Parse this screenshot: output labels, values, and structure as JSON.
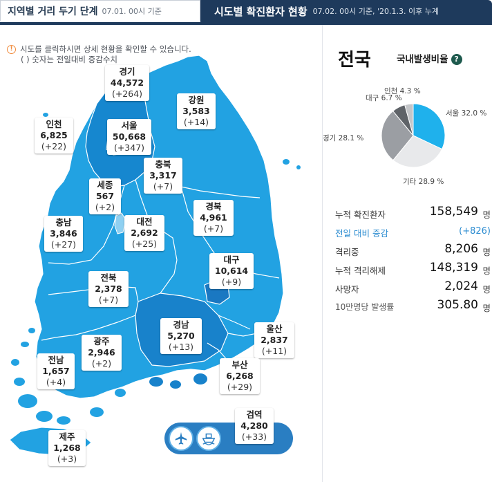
{
  "tabs": {
    "stage": {
      "title": "지역별 거리 두기 단계",
      "date": "07.01. 00시 기준"
    },
    "status": {
      "title": "시도별 확진환자 현황",
      "date": "07.02. 00시 기준, '20.1.3. 이후 누계"
    }
  },
  "notice": {
    "line1": "시도를 클릭하시면 상세 현황을 확인할 수 있습니다.",
    "line2": "( ) 숫자는 전일대비 증감수치",
    "icon": "info-icon"
  },
  "regions": [
    {
      "id": "gyeonggi",
      "name": "경기",
      "count": "44,572",
      "diff": "(+264)"
    },
    {
      "id": "gangwon",
      "name": "강원",
      "count": "3,583",
      "diff": "(+14)"
    },
    {
      "id": "incheon",
      "name": "인천",
      "count": "6,825",
      "diff": "(+22)"
    },
    {
      "id": "seoul",
      "name": "서울",
      "count": "50,668",
      "diff": "(+347)"
    },
    {
      "id": "chungbuk",
      "name": "충북",
      "count": "3,317",
      "diff": "(+7)"
    },
    {
      "id": "sejong",
      "name": "세종",
      "count": "567",
      "diff": "(+2)"
    },
    {
      "id": "chungnam",
      "name": "충남",
      "count": "3,846",
      "diff": "(+27)"
    },
    {
      "id": "daejeon",
      "name": "대전",
      "count": "2,692",
      "diff": "(+25)"
    },
    {
      "id": "gyeongbuk",
      "name": "경북",
      "count": "4,961",
      "diff": "(+7)"
    },
    {
      "id": "daegu",
      "name": "대구",
      "count": "10,614",
      "diff": "(+9)"
    },
    {
      "id": "jeonbuk",
      "name": "전북",
      "count": "2,378",
      "diff": "(+7)"
    },
    {
      "id": "gyeongnam",
      "name": "경남",
      "count": "5,270",
      "diff": "(+13)"
    },
    {
      "id": "ulsan",
      "name": "울산",
      "count": "2,837",
      "diff": "(+11)"
    },
    {
      "id": "gwangju",
      "name": "광주",
      "count": "2,946",
      "diff": "(+2)"
    },
    {
      "id": "jeonnam",
      "name": "전남",
      "count": "1,657",
      "diff": "(+4)"
    },
    {
      "id": "busan",
      "name": "부산",
      "count": "6,268",
      "diff": "(+29)"
    },
    {
      "id": "quarantine",
      "name": "검역",
      "count": "4,280",
      "diff": "(+33)"
    },
    {
      "id": "jeju",
      "name": "제주",
      "count": "1,268",
      "diff": "(+3)"
    }
  ],
  "transport": {
    "plane_icon": "airplane-icon",
    "ship_icon": "ship-icon"
  },
  "national": {
    "title": "전국",
    "ratio_label": "국내발생비율",
    "help_icon": "question-icon",
    "pie": [
      {
        "label": "서울 32.0 %",
        "value": 32.0,
        "color": "#1fb1ec"
      },
      {
        "label": "기타 28.9 %",
        "value": 28.9,
        "color": "#e8e9eb"
      },
      {
        "label": "경기 28.1 %",
        "value": 28.1,
        "color": "#9b9ea3"
      },
      {
        "label": "대구 6.7 %",
        "value": 6.7,
        "color": "#5f6368"
      },
      {
        "label": "인천 4.3 %",
        "value": 4.3,
        "color": "#c4c6c9"
      }
    ],
    "stats": [
      {
        "key": "누적 확진환자",
        "value": "158,549",
        "unit": "명"
      },
      {
        "key": "전일 대비 증감",
        "value": "(+826)",
        "unit": ""
      },
      {
        "key": "격리중",
        "value": "8,206",
        "unit": "명"
      },
      {
        "key": "누적 격리해제",
        "value": "148,319",
        "unit": "명"
      },
      {
        "key": "사망자",
        "value": "2,024",
        "unit": "명"
      },
      {
        "key": "10만명당 발생률",
        "value": "305.80",
        "unit": "명"
      }
    ]
  }
}
